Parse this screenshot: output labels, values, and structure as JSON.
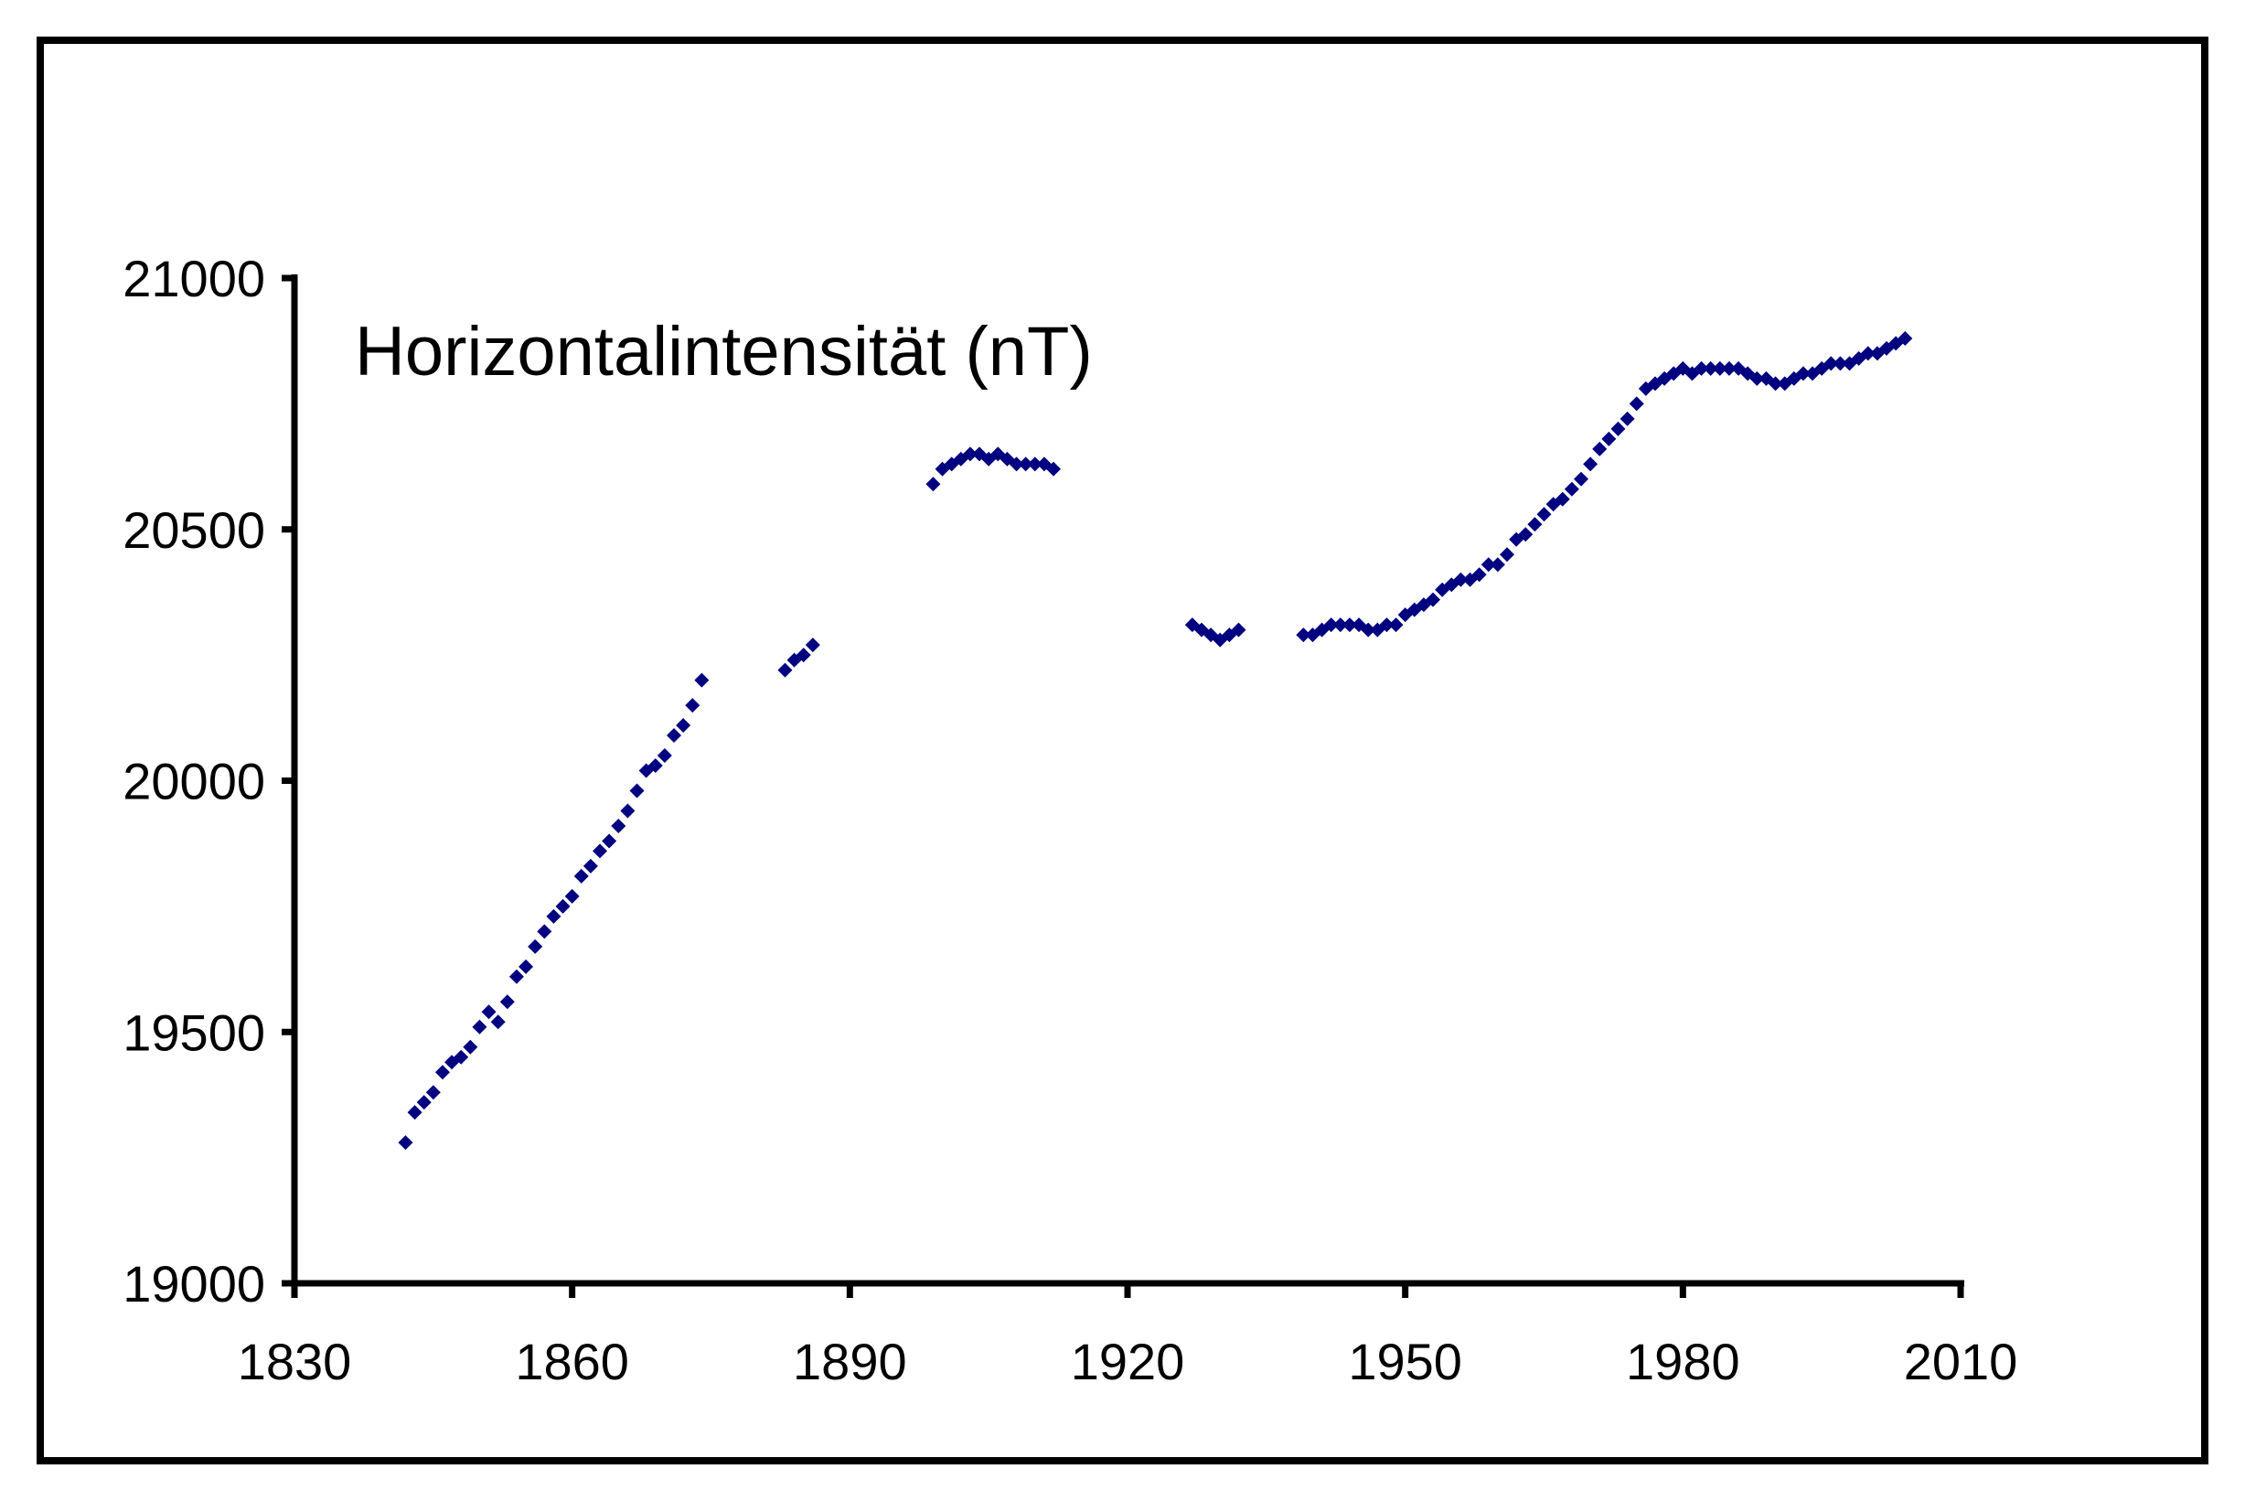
{
  "chart_data": {
    "type": "scatter",
    "title": "Horizontalintensität (nT)",
    "xlabel": "",
    "ylabel": "",
    "xlim": [
      1830,
      2010
    ],
    "ylim": [
      19000,
      21000
    ],
    "x_ticks": [
      1830,
      1860,
      1890,
      1920,
      1950,
      1980,
      2010
    ],
    "y_ticks": [
      19000,
      19500,
      20000,
      20500,
      21000
    ],
    "grid": false,
    "legend": "none",
    "marker_color": "#000080",
    "series": [
      {
        "points": [
          [
            1842,
            19280
          ],
          [
            1843,
            19340
          ],
          [
            1844,
            19360
          ],
          [
            1845,
            19380
          ],
          [
            1846,
            19420
          ],
          [
            1847,
            19440
          ],
          [
            1848,
            19450
          ],
          [
            1849,
            19470
          ],
          [
            1850,
            19510
          ],
          [
            1851,
            19540
          ],
          [
            1852,
            19520
          ],
          [
            1853,
            19560
          ],
          [
            1854,
            19610
          ],
          [
            1855,
            19630
          ],
          [
            1856,
            19670
          ],
          [
            1857,
            19700
          ],
          [
            1858,
            19730
          ],
          [
            1859,
            19750
          ],
          [
            1860,
            19770
          ],
          [
            1861,
            19810
          ],
          [
            1862,
            19830
          ],
          [
            1863,
            19860
          ],
          [
            1864,
            19880
          ],
          [
            1865,
            19910
          ],
          [
            1866,
            19940
          ],
          [
            1867,
            19980
          ],
          [
            1868,
            20020
          ],
          [
            1869,
            20030
          ],
          [
            1870,
            20050
          ],
          [
            1871,
            20090
          ],
          [
            1872,
            20110
          ],
          [
            1873,
            20150
          ],
          [
            1874,
            20200
          ],
          [
            1883,
            20220
          ],
          [
            1884,
            20240
          ],
          [
            1885,
            20250
          ],
          [
            1886,
            20270
          ],
          [
            1899,
            20590
          ],
          [
            1900,
            20620
          ],
          [
            1901,
            20630
          ],
          [
            1902,
            20640
          ],
          [
            1903,
            20650
          ],
          [
            1904,
            20650
          ],
          [
            1905,
            20640
          ],
          [
            1906,
            20650
          ],
          [
            1907,
            20640
          ],
          [
            1908,
            20630
          ],
          [
            1909,
            20630
          ],
          [
            1910,
            20630
          ],
          [
            1911,
            20630
          ],
          [
            1912,
            20620
          ],
          [
            1927,
            20310
          ],
          [
            1928,
            20300
          ],
          [
            1929,
            20290
          ],
          [
            1930,
            20280
          ],
          [
            1931,
            20290
          ],
          [
            1932,
            20300
          ],
          [
            1939,
            20290
          ],
          [
            1940,
            20290
          ],
          [
            1941,
            20300
          ],
          [
            1942,
            20310
          ],
          [
            1943,
            20310
          ],
          [
            1944,
            20310
          ],
          [
            1945,
            20310
          ],
          [
            1946,
            20300
          ],
          [
            1947,
            20300
          ],
          [
            1948,
            20310
          ],
          [
            1949,
            20310
          ],
          [
            1950,
            20330
          ],
          [
            1951,
            20340
          ],
          [
            1952,
            20350
          ],
          [
            1953,
            20360
          ],
          [
            1954,
            20380
          ],
          [
            1955,
            20390
          ],
          [
            1956,
            20400
          ],
          [
            1957,
            20400
          ],
          [
            1958,
            20410
          ],
          [
            1959,
            20430
          ],
          [
            1960,
            20430
          ],
          [
            1961,
            20450
          ],
          [
            1962,
            20480
          ],
          [
            1963,
            20490
          ],
          [
            1964,
            20510
          ],
          [
            1965,
            20530
          ],
          [
            1966,
            20550
          ],
          [
            1967,
            20560
          ],
          [
            1968,
            20580
          ],
          [
            1969,
            20600
          ],
          [
            1970,
            20630
          ],
          [
            1971,
            20660
          ],
          [
            1972,
            20680
          ],
          [
            1973,
            20700
          ],
          [
            1974,
            20720
          ],
          [
            1975,
            20750
          ],
          [
            1976,
            20780
          ],
          [
            1977,
            20790
          ],
          [
            1978,
            20800
          ],
          [
            1979,
            20810
          ],
          [
            1980,
            20820
          ],
          [
            1981,
            20810
          ],
          [
            1982,
            20820
          ],
          [
            1983,
            20820
          ],
          [
            1984,
            20820
          ],
          [
            1985,
            20820
          ],
          [
            1986,
            20820
          ],
          [
            1987,
            20810
          ],
          [
            1988,
            20800
          ],
          [
            1989,
            20800
          ],
          [
            1990,
            20790
          ],
          [
            1991,
            20790
          ],
          [
            1992,
            20800
          ],
          [
            1993,
            20810
          ],
          [
            1994,
            20810
          ],
          [
            1995,
            20820
          ],
          [
            1996,
            20830
          ],
          [
            1997,
            20830
          ],
          [
            1998,
            20830
          ],
          [
            1999,
            20840
          ],
          [
            2000,
            20850
          ],
          [
            2001,
            20850
          ],
          [
            2002,
            20860
          ],
          [
            2003,
            20870
          ],
          [
            2004,
            20880
          ]
        ]
      }
    ]
  }
}
